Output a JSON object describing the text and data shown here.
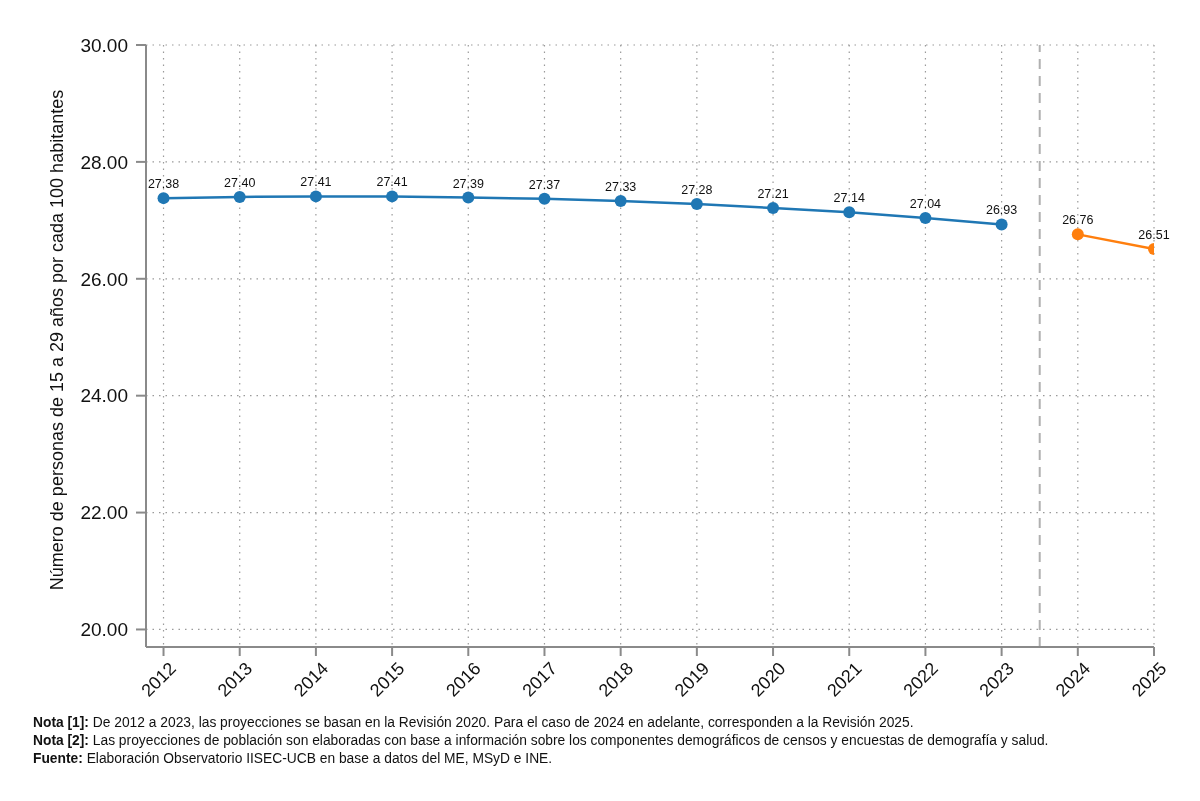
{
  "chart_data": {
    "type": "line",
    "ylabel": "Número de personas de 15 a 29 años por cada 100 habitantes",
    "annotations": [
      "Nota [1]: De 2012 a 2023, las proyecciones se basan en la Revisión 2020. Para el caso de 2024 en adelante, corresponden a la Revisión 2025.",
      "Nota [2]: Las proyecciones de población son elaboradas con base a información sobre los componentes demográficos de censos y encuestas de demografía y salud.",
      "Fuente: Elaboración Observatorio IISEC-UCB en base a datos del ME, MSyD e INE."
    ],
    "xlim": [
      2011.77,
      2025
    ],
    "ylim": [
      19.7,
      30
    ],
    "xticks": [
      2012,
      2013,
      2014,
      2015,
      2016,
      2017,
      2018,
      2019,
      2020,
      2021,
      2022,
      2023,
      2024,
      2025
    ],
    "yticks": [
      {
        "value": 20,
        "label": "20.00"
      },
      {
        "value": 22,
        "label": "22.00"
      },
      {
        "value": 24,
        "label": "24.00"
      },
      {
        "value": 26,
        "label": "26.00"
      },
      {
        "value": 28,
        "label": "28.00"
      },
      {
        "value": 30,
        "label": "30.00"
      }
    ],
    "grid": true,
    "marker": "circle",
    "line_style": "solid",
    "series": [
      {
        "color": "#1f77b4",
        "x": [
          2012,
          2013,
          2014,
          2015,
          2016,
          2017,
          2018,
          2019,
          2020,
          2021,
          2022,
          2023
        ],
        "values": [
          27.38,
          27.4,
          27.41,
          27.41,
          27.39,
          27.37,
          27.33,
          27.28,
          27.21,
          27.14,
          27.04,
          26.93
        ],
        "value_labels": [
          "27.38",
          "27.40",
          "27.41",
          "27.41",
          "27.39",
          "27.37",
          "27.33",
          "27.28",
          "27.21",
          "27.14",
          "27.04",
          "26.93"
        ]
      },
      {
        "color": "#ff7f0e",
        "x": [
          2024,
          2025
        ],
        "values": [
          26.76,
          26.51
        ],
        "value_labels": [
          "26.76",
          "26.51"
        ]
      }
    ],
    "ref_lines": [
      {
        "axis": "x",
        "value": 2023.5,
        "color": "#b0b0b0",
        "line_style": "dashed"
      }
    ]
  }
}
